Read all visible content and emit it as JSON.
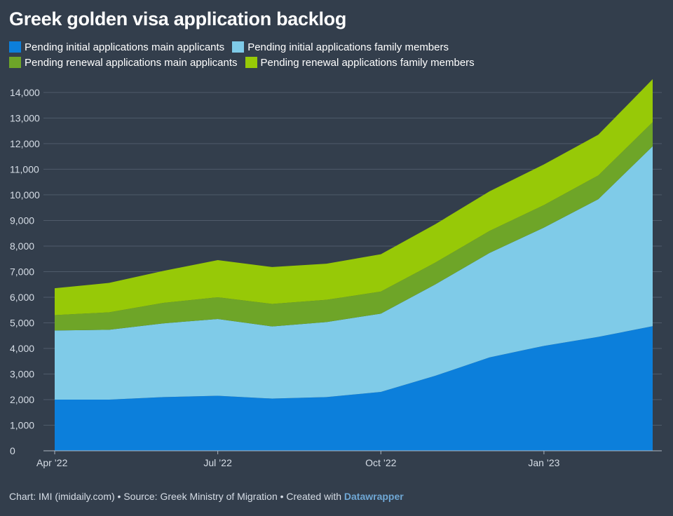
{
  "chart_data": {
    "type": "area",
    "stacked": true,
    "title": "Greek golden visa application backlog",
    "x": [
      "2022-04",
      "2022-05",
      "2022-06",
      "2022-07",
      "2022-08",
      "2022-09",
      "2022-10",
      "2022-11",
      "2022-12",
      "2023-01",
      "2023-02",
      "2023-03"
    ],
    "x_ticks": [
      {
        "x": "2022-04",
        "label": "Apr ’22"
      },
      {
        "x": "2022-07",
        "label": "Jul ’22"
      },
      {
        "x": "2022-10",
        "label": "Oct ’22"
      },
      {
        "x": "2023-01",
        "label": "Jan ’23"
      }
    ],
    "y_ticks": [
      {
        "value": 0,
        "label": "0"
      },
      {
        "value": 1000,
        "label": "1,000"
      },
      {
        "value": 2000,
        "label": "2,000"
      },
      {
        "value": 3000,
        "label": "3,000"
      },
      {
        "value": 4000,
        "label": "4,000"
      },
      {
        "value": 5000,
        "label": "5,000"
      },
      {
        "value": 6000,
        "label": "6,000"
      },
      {
        "value": 7000,
        "label": "7,000"
      },
      {
        "value": 8000,
        "label": "8,000"
      },
      {
        "value": 9000,
        "label": "9,000"
      },
      {
        "value": 10000,
        "label": "10,000"
      },
      {
        "value": 11000,
        "label": "11,000"
      },
      {
        "value": 12000,
        "label": "12,000"
      },
      {
        "value": 13000,
        "label": "13,000"
      },
      {
        "value": 14000,
        "label": "14,000"
      }
    ],
    "ylim": [
      0,
      14600
    ],
    "grid": true,
    "legend_position": "top",
    "series": [
      {
        "name": "Pending initial applications main applicants",
        "color": "#0c7fdb",
        "values": [
          2000,
          2000,
          2100,
          2150,
          2040,
          2100,
          2300,
          2930,
          3650,
          4100,
          4450,
          4870
        ]
      },
      {
        "name": "Pending initial applications family members",
        "color": "#7fcbe8",
        "values": [
          2700,
          2730,
          2880,
          3000,
          2820,
          2930,
          3060,
          3570,
          4080,
          4620,
          5380,
          7030
        ]
      },
      {
        "name": "Pending renewal applications main applicants",
        "color": "#6ea528",
        "values": [
          600,
          680,
          800,
          850,
          880,
          870,
          860,
          850,
          860,
          880,
          930,
          940
        ]
      },
      {
        "name": "Pending renewal applications family members",
        "color": "#97c907",
        "values": [
          1050,
          1150,
          1250,
          1450,
          1440,
          1410,
          1460,
          1500,
          1550,
          1590,
          1590,
          1680
        ]
      }
    ]
  },
  "footer": {
    "text": "Chart: IMI (imidaily.com) • Source: Greek Ministry of Migration • Created with",
    "tool": "Datawrapper"
  }
}
